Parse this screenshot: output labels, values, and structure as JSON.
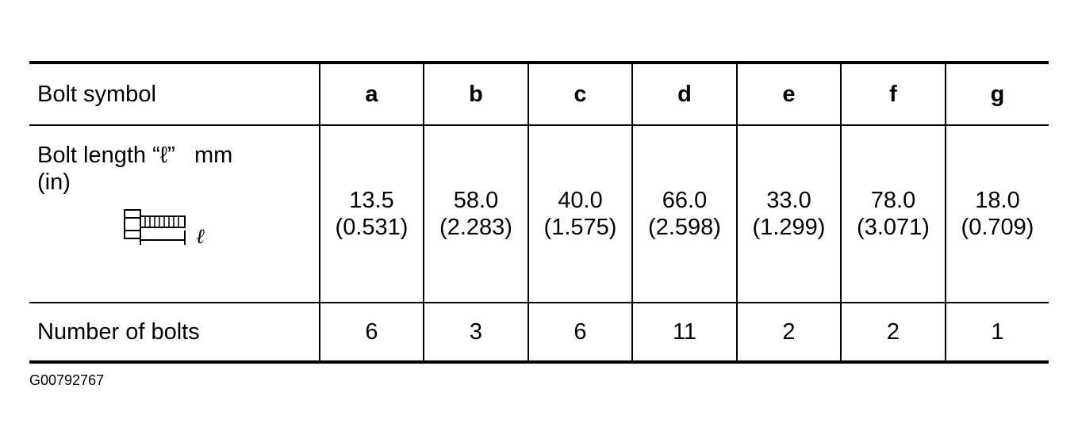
{
  "table": {
    "header_label": "Bolt symbol",
    "symbols": [
      "a",
      "b",
      "c",
      "d",
      "e",
      "f",
      "g"
    ],
    "length_label_line1": "Bolt length “ℓ”   mm",
    "length_label_line2": "(in)",
    "bolt_icon": "bolt-length-diagram-icon",
    "lengths_mm": [
      "13.5",
      "58.0",
      "40.0",
      "66.0",
      "33.0",
      "78.0",
      "18.0"
    ],
    "lengths_in": [
      "(0.531)",
      "(2.283)",
      "(1.575)",
      "(2.598)",
      "(1.299)",
      "(3.071)",
      "(0.709)"
    ],
    "count_label": "Number of bolts",
    "counts": [
      "6",
      "3",
      "6",
      "11",
      "2",
      "2",
      "1"
    ]
  },
  "footer": {
    "code": "G00792767"
  }
}
